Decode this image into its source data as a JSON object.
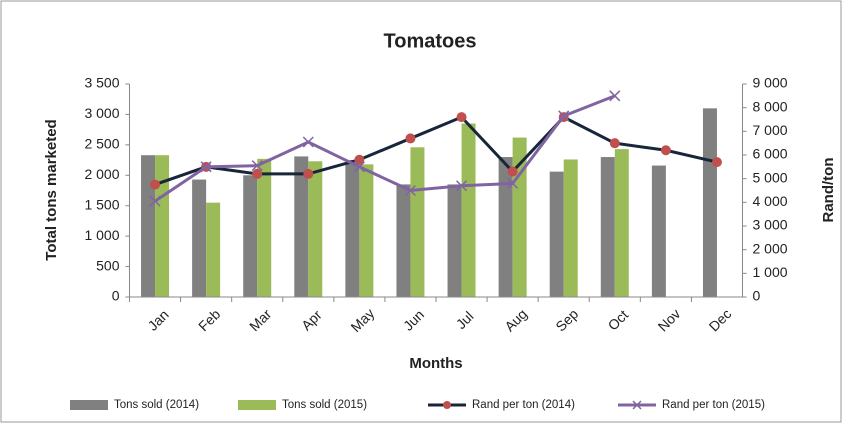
{
  "chart_data": {
    "type": "bar-line",
    "title": "Tomatoes",
    "x_label": "Months",
    "y_label": "Total tons marketed",
    "y2_label": "Rand/ton",
    "categories": [
      "Jan",
      "Feb",
      "Mar",
      "Apr",
      "May",
      "Jun",
      "Jul",
      "Aug",
      "Sep",
      "Oct",
      "Nov",
      "Dec"
    ],
    "series": [
      {
        "name": "Tons sold (2014)",
        "kind": "bar",
        "color": "#808080",
        "values": [
          2330,
          1930,
          2000,
          2310,
          2250,
          1850,
          1850,
          2300,
          2060,
          2300,
          2160,
          3100
        ]
      },
      {
        "name": "Tons sold (2015)",
        "kind": "bar",
        "color": "#9bbb59",
        "values": [
          2330,
          1550,
          2270,
          2230,
          2180,
          2460,
          2850,
          2620,
          2260,
          2430,
          null,
          null
        ]
      },
      {
        "name": "Rand per ton (2014)",
        "kind": "line",
        "axis": "y2",
        "color": "#17263a",
        "marker": "circle",
        "marker_color": "#c0504d",
        "values": [
          4750,
          5500,
          5200,
          5200,
          5800,
          6700,
          7600,
          5300,
          7600,
          6500,
          6200,
          5700
        ]
      },
      {
        "name": "Rand per ton (2015)",
        "kind": "line",
        "axis": "y2",
        "color": "#8064a2",
        "marker": "x",
        "marker_color": "#8064a2",
        "values": [
          4050,
          5500,
          5550,
          6550,
          5500,
          4500,
          4700,
          4800,
          7650,
          8500,
          null,
          null
        ]
      }
    ],
    "ylim": [
      0,
      3500
    ],
    "yticks": [
      0,
      500,
      {
        "value": 1000,
        "label": "1 000"
      },
      {
        "value": 1500,
        "label": "1 500"
      },
      {
        "value": 2000,
        "label": "2 000"
      },
      {
        "value": 2500,
        "label": "2 500"
      },
      {
        "value": 3000,
        "label": "3 000"
      },
      {
        "value": 3500,
        "label": "3 500"
      }
    ],
    "y2lim": [
      0,
      9000
    ],
    "y2ticks": [
      0,
      {
        "value": 1000,
        "label": "1 000"
      },
      {
        "value": 2000,
        "label": "2 000"
      },
      {
        "value": 3000,
        "label": "3 000"
      },
      {
        "value": 4000,
        "label": "4 000"
      },
      {
        "value": 5000,
        "label": "5 000"
      },
      {
        "value": 6000,
        "label": "6 000"
      },
      {
        "value": 7000,
        "label": "7 000"
      },
      {
        "value": 8000,
        "label": "8 000"
      },
      {
        "value": 9000,
        "label": "9 000"
      }
    ],
    "legend": "bottom"
  }
}
